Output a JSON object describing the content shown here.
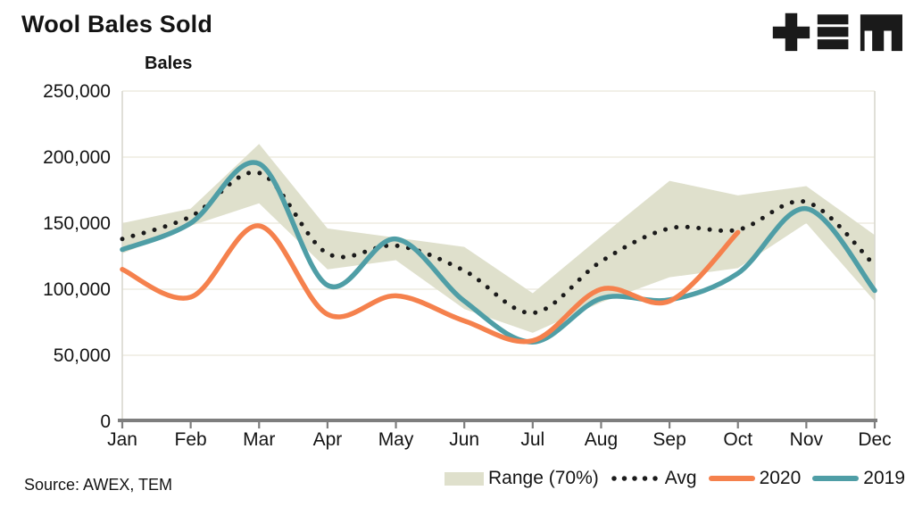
{
  "header": {
    "title": "Wool Bales Sold"
  },
  "logo": {
    "name": "TEM logo",
    "color": "#1A1A1A"
  },
  "axis": {
    "y_title": "Bales"
  },
  "footer": {
    "source": "Source: AWEX, TEM"
  },
  "colors": {
    "band": "#DFE0CC",
    "avg": "#1B1B1B",
    "y2020": "#F5814D",
    "y2019": "#4F9EA6",
    "grid": "#EDECE0",
    "plot_border": "#D8D7CE",
    "axis_line": "#7E7E7E",
    "text": "#141414"
  },
  "legend": [
    {
      "label": "Range (70%)",
      "marker": "band",
      "color": "#DFE0CC"
    },
    {
      "label": "Avg",
      "marker": "dotted",
      "color": "#1B1B1B"
    },
    {
      "label": "2020",
      "marker": "line",
      "color": "#F5814D"
    },
    {
      "label": "2019",
      "marker": "line",
      "color": "#4F9EA6"
    }
  ],
  "chart_data": {
    "type": "line",
    "title": "Wool Bales Sold",
    "xlabel": "",
    "ylabel": "Bales",
    "ylim": [
      0,
      250000
    ],
    "yticks": [
      0,
      50000,
      100000,
      150000,
      200000,
      250000
    ],
    "categories": [
      "Jan",
      "Feb",
      "Mar",
      "Apr",
      "May",
      "Jun",
      "Jul",
      "Aug",
      "Sep",
      "Oct",
      "Nov",
      "Dec"
    ],
    "grid": true,
    "legend_position": "bottom-right",
    "series": [
      {
        "name": "Range (70%)",
        "type": "band",
        "color": "#DFE0CC",
        "upper": [
          150000,
          161000,
          210000,
          146000,
          139000,
          132000,
          97000,
          140000,
          182000,
          171000,
          178000,
          141000
        ],
        "lower": [
          127000,
          148000,
          165000,
          115000,
          122000,
          85000,
          67000,
          90000,
          109000,
          116000,
          150000,
          91000
        ]
      },
      {
        "name": "Avg",
        "type": "line",
        "style": "dotted",
        "color": "#1B1B1B",
        "values": [
          138000,
          155000,
          188000,
          127000,
          133000,
          114000,
          82000,
          121000,
          146000,
          145000,
          166000,
          118000
        ]
      },
      {
        "name": "2019",
        "type": "line",
        "style": "solid",
        "color": "#4F9EA6",
        "values": [
          130000,
          150000,
          195000,
          103000,
          138000,
          91000,
          60000,
          93000,
          92000,
          112000,
          161000,
          99000
        ]
      },
      {
        "name": "2020",
        "type": "line",
        "style": "solid",
        "color": "#F5814D",
        "values": [
          115000,
          94000,
          148000,
          81000,
          95000,
          76000,
          61000,
          100000,
          91000,
          143000,
          null,
          null
        ]
      }
    ]
  }
}
